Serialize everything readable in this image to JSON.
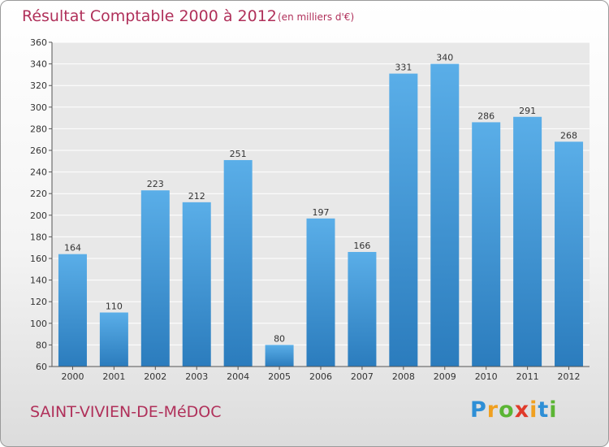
{
  "header": {
    "title": "Résultat Comptable 2000 à 2012",
    "subtitle": "(en milliers d'€)"
  },
  "footer": {
    "place": "SAINT-VIVIEN-DE-MéDOC",
    "logo": "Proxiti"
  },
  "colors": {
    "title": "#b0305a",
    "bar_top": "#5aaee8",
    "bar_bottom": "#2b7cbd",
    "grid": "#ffffff",
    "plot_bg": "#e8e8e8"
  },
  "chart_data": {
    "type": "bar",
    "title": "Résultat Comptable 2000 à 2012",
    "subtitle": "(en milliers d'€)",
    "xlabel": "",
    "ylabel": "",
    "categories": [
      "2000",
      "2001",
      "2002",
      "2003",
      "2004",
      "2005",
      "2006",
      "2007",
      "2008",
      "2009",
      "2010",
      "2011",
      "2012"
    ],
    "values": [
      164,
      110,
      223,
      212,
      251,
      80,
      197,
      166,
      331,
      340,
      286,
      291,
      268
    ],
    "ylim": [
      60,
      360
    ],
    "yticks": [
      60,
      80,
      100,
      120,
      140,
      160,
      180,
      200,
      220,
      240,
      260,
      280,
      300,
      320,
      340,
      360
    ],
    "grid": true
  }
}
